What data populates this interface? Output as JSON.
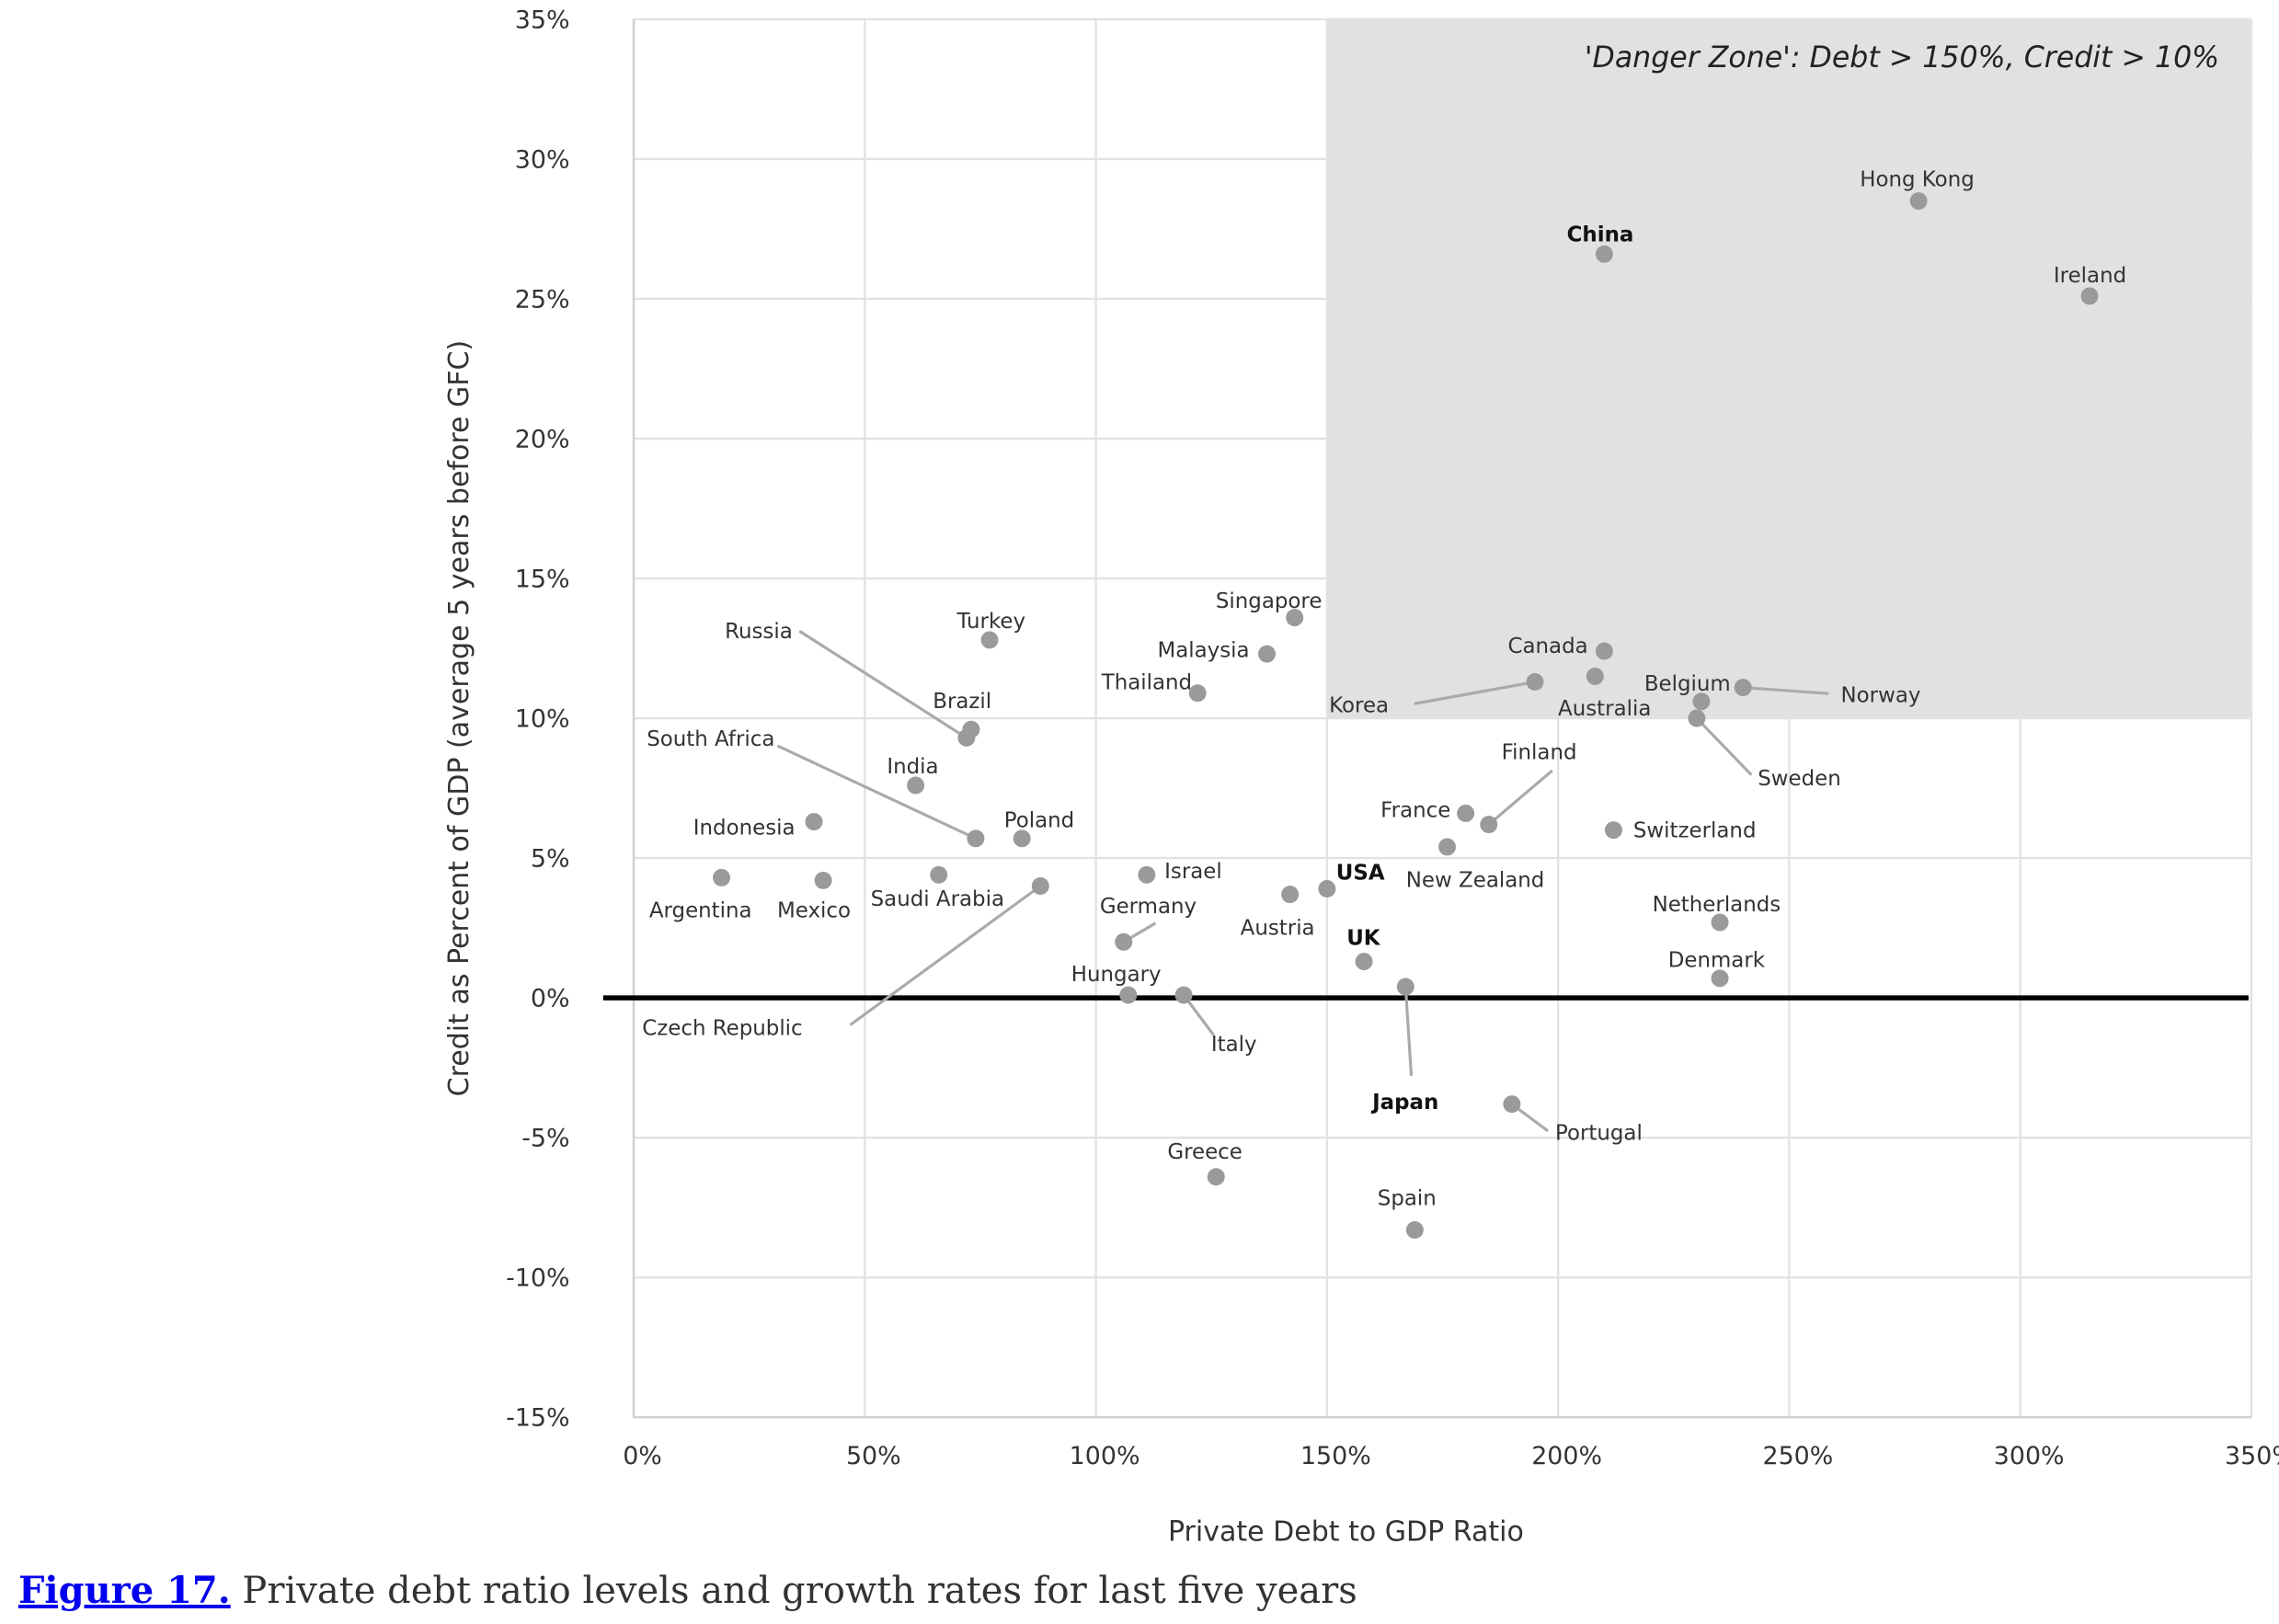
{
  "chart_data": {
    "type": "scatter",
    "xlabel": "Private Debt to GDP Ratio",
    "ylabel": "Credit as Percent of GDP (average 5 years before GFC)",
    "xlim": [
      0,
      350
    ],
    "ylim": [
      -15,
      35
    ],
    "x_ticks": [
      "0%",
      "50%",
      "100%",
      "150%",
      "200%",
      "250%",
      "300%",
      "350%"
    ],
    "y_ticks": [
      "35%",
      "30%",
      "25%",
      "20%",
      "15%",
      "10%",
      "5%",
      "0%",
      "-5%",
      "-10%",
      "-15%"
    ],
    "grid": true,
    "zero_line": true,
    "danger_zone": {
      "label": "'Danger Zone': Debt > 150%, Credit > 10%",
      "x_min": 150,
      "y_min": 10,
      "color": "#e1e1e1"
    },
    "point_color": "#9a9a9a",
    "points": [
      {
        "name": "Hong Kong",
        "x": 278,
        "y": 28.5
      },
      {
        "name": "China",
        "x": 210,
        "y": 26.6,
        "emphasized": true
      },
      {
        "name": "Ireland",
        "x": 315,
        "y": 25.1
      },
      {
        "name": "Singapore",
        "x": 143,
        "y": 13.6
      },
      {
        "name": "Turkey",
        "x": 77,
        "y": 12.8
      },
      {
        "name": "Malaysia",
        "x": 137,
        "y": 12.3
      },
      {
        "name": "Canada",
        "x": 210,
        "y": 12.4
      },
      {
        "name": "Korea",
        "x": 195,
        "y": 11.3
      },
      {
        "name": "Australia",
        "x": 208,
        "y": 11.5
      },
      {
        "name": "Norway",
        "x": 240,
        "y": 11.1
      },
      {
        "name": "Thailand",
        "x": 122,
        "y": 10.9
      },
      {
        "name": "Belgium",
        "x": 231,
        "y": 10.6
      },
      {
        "name": "Brazil",
        "x": 73,
        "y": 9.6
      },
      {
        "name": "Russia",
        "x": 72,
        "y": 9.3
      },
      {
        "name": "Sweden",
        "x": 230,
        "y": 10.0
      },
      {
        "name": "India",
        "x": 61,
        "y": 7.6
      },
      {
        "name": "Indonesia",
        "x": 39,
        "y": 6.3
      },
      {
        "name": "Finland",
        "x": 185,
        "y": 6.2
      },
      {
        "name": "France",
        "x": 180,
        "y": 6.6
      },
      {
        "name": "Switzerland",
        "x": 212,
        "y": 6.0
      },
      {
        "name": "South Africa",
        "x": 74,
        "y": 5.7
      },
      {
        "name": "Poland",
        "x": 84,
        "y": 5.7
      },
      {
        "name": "New Zealand",
        "x": 176,
        "y": 5.4
      },
      {
        "name": "Argentina",
        "x": 19,
        "y": 4.3
      },
      {
        "name": "Mexico",
        "x": 41,
        "y": 4.2
      },
      {
        "name": "Saudi Arabia",
        "x": 66,
        "y": 4.4
      },
      {
        "name": "Israel",
        "x": 111,
        "y": 4.4
      },
      {
        "name": "Czech Republic",
        "x": 88,
        "y": 4.0
      },
      {
        "name": "USA",
        "x": 150,
        "y": 3.9,
        "emphasized": true
      },
      {
        "name": "Austria",
        "x": 142,
        "y": 3.7
      },
      {
        "name": "Netherlands",
        "x": 235,
        "y": 2.7
      },
      {
        "name": "Germany",
        "x": 106,
        "y": 2.0
      },
      {
        "name": "UK",
        "x": 158,
        "y": 1.3,
        "emphasized": true
      },
      {
        "name": "Denmark",
        "x": 235,
        "y": 0.7
      },
      {
        "name": "Japan",
        "x": 167,
        "y": 0.4,
        "emphasized": true
      },
      {
        "name": "Hungary",
        "x": 107,
        "y": 0.1
      },
      {
        "name": "Italy",
        "x": 119,
        "y": 0.1
      },
      {
        "name": "Portugal",
        "x": 190,
        "y": -3.8
      },
      {
        "name": "Greece",
        "x": 126,
        "y": -6.4
      },
      {
        "name": "Spain",
        "x": 169,
        "y": -8.3
      }
    ]
  },
  "caption": {
    "figure_link": "Figure 17.",
    "text": " Private debt ratio levels and growth rates for last five years"
  }
}
